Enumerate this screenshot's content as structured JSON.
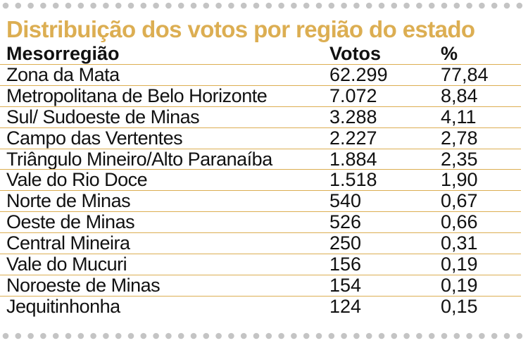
{
  "title": "Distribuição dos votos por região do estado",
  "headers": {
    "region": "Mesorregião",
    "votes": "Votos",
    "percent": "%"
  },
  "rows": [
    {
      "region": "Zona da Mata",
      "votes": "62.299",
      "percent": "77,84"
    },
    {
      "region": "Metropolitana de Belo Horizonte",
      "votes": "7.072",
      "percent": "8,84"
    },
    {
      "region": "Sul/ Sudoeste de Minas",
      "votes": "3.288",
      "percent": "4,11"
    },
    {
      "region": "Campo das Vertentes",
      "votes": "2.227",
      "percent": "2,78"
    },
    {
      "region": "Triângulo Mineiro/Alto Paranaíba",
      "votes": "1.884",
      "percent": "2,35"
    },
    {
      "region": "Vale do Rio Doce",
      "votes": "1.518",
      "percent": "1,90"
    },
    {
      "region": "Norte de Minas",
      "votes": "540",
      "percent": "0,67"
    },
    {
      "region": "Oeste de Minas",
      "votes": "526",
      "percent": "0,66"
    },
    {
      "region": "Central Mineira",
      "votes": "250",
      "percent": "0,31"
    },
    {
      "region": "Vale do Mucuri",
      "votes": "156",
      "percent": "0,19"
    },
    {
      "region": "Noroeste de Minas",
      "votes": "154",
      "percent": "0,19"
    },
    {
      "region": "Jequitinhonha",
      "votes": "124",
      "percent": "0,15"
    }
  ],
  "colors": {
    "accent": "#dcae52",
    "dots": "#c4c4c4",
    "text": "#111111"
  }
}
